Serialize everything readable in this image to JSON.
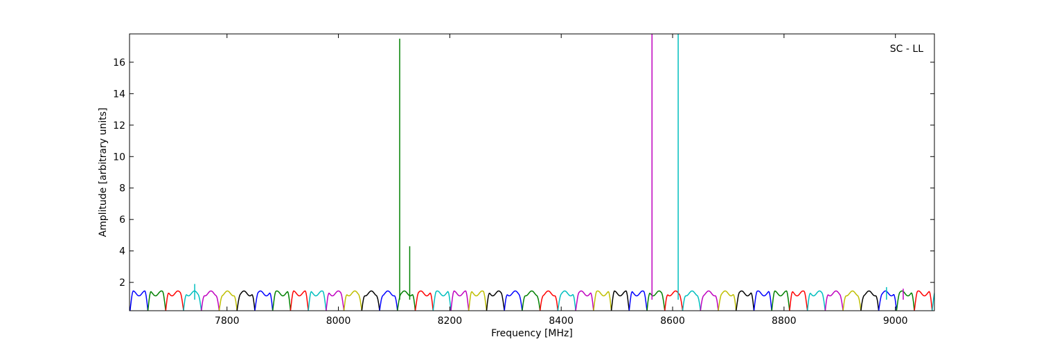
{
  "chart_data": {
    "type": "line",
    "title": "",
    "annotation": "SC - LL",
    "xlabel": "Frequency [MHz]",
    "ylabel": "Amplitude [arbitrary units]",
    "xlim": [
      7625,
      9070
    ],
    "ylim": [
      0.2,
      17.8
    ],
    "x_ticks": [
      7800,
      8000,
      8200,
      8400,
      8600,
      8800,
      9000
    ],
    "y_ticks": [
      2,
      4,
      6,
      8,
      10,
      12,
      14,
      16
    ],
    "grid": false,
    "legend": "none",
    "palette": [
      "#0000ff",
      "#008000",
      "#ff0000",
      "#00bfbf",
      "#bf00bf",
      "#bfbf00",
      "#000000"
    ],
    "subband_width_mhz": 32,
    "subband_first_start_mhz": 7626,
    "subband_peak_amplitude": 1.3,
    "spikes": [
      {
        "x": 8110,
        "y": 17.5,
        "color": "#008000"
      },
      {
        "x": 8128,
        "y": 4.3,
        "color": "#008000"
      },
      {
        "x": 8563,
        "y": 17.8,
        "color": "#bf00bf"
      },
      {
        "x": 8610,
        "y": 17.8,
        "color": "#00bfbf"
      },
      {
        "x": 7742,
        "y": 1.9,
        "color": "#00bfbf"
      },
      {
        "x": 8984,
        "y": 1.7,
        "color": "#00bfbf"
      },
      {
        "x": 9014,
        "y": 1.6,
        "color": "#bf00bf"
      }
    ]
  }
}
